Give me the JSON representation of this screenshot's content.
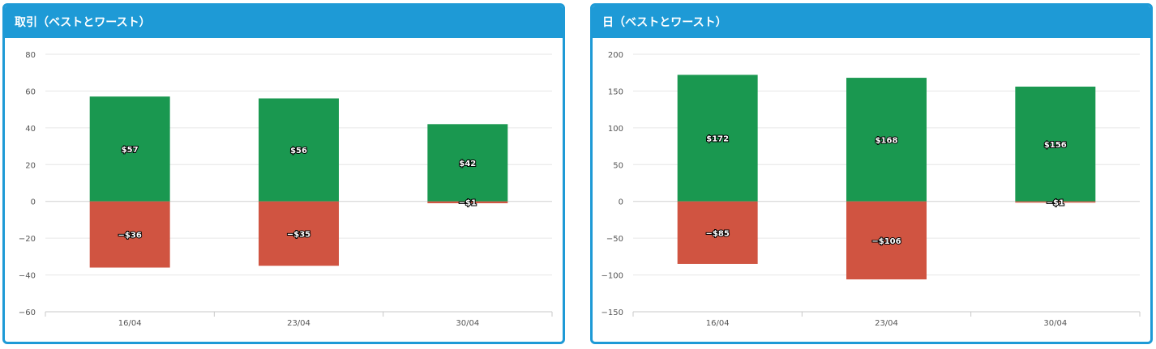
{
  "panels": [
    {
      "title": "取引（ベストとワースト）"
    },
    {
      "title": "日（ベストとワースト）"
    }
  ],
  "colors": {
    "positive": "#1a9850",
    "negative": "#d05441",
    "header": "#1e9ad6"
  },
  "chart_data": [
    {
      "type": "bar",
      "title": "取引（ベストとワースト）",
      "categories": [
        "16/04",
        "23/04",
        "30/04"
      ],
      "series": [
        {
          "values": [
            57,
            56,
            42
          ],
          "labels": [
            "$57",
            "$56",
            "$42"
          ]
        },
        {
          "values": [
            -36,
            -35,
            -1
          ],
          "labels": [
            "−$36",
            "−$35",
            "−$1"
          ]
        }
      ],
      "ylim": [
        -60,
        80
      ],
      "yticks": [
        80,
        60,
        40,
        20,
        0,
        -20,
        -40,
        -60
      ],
      "ytick_labels": [
        "80",
        "60",
        "40",
        "20",
        "0",
        "−20",
        "−40",
        "−60"
      ],
      "grid": true
    },
    {
      "type": "bar",
      "title": "日（ベストとワースト）",
      "categories": [
        "16/04",
        "23/04",
        "30/04"
      ],
      "series": [
        {
          "values": [
            172,
            168,
            156
          ],
          "labels": [
            "$172",
            "$168",
            "$156"
          ]
        },
        {
          "values": [
            -85,
            -106,
            -1
          ],
          "labels": [
            "−$85",
            "−$106",
            "−$1"
          ]
        }
      ],
      "ylim": [
        -150,
        200
      ],
      "yticks": [
        200,
        150,
        100,
        50,
        0,
        -50,
        -100,
        -150
      ],
      "ytick_labels": [
        "200",
        "150",
        "100",
        "50",
        "0",
        "−50",
        "−100",
        "−150"
      ],
      "grid": true
    }
  ]
}
